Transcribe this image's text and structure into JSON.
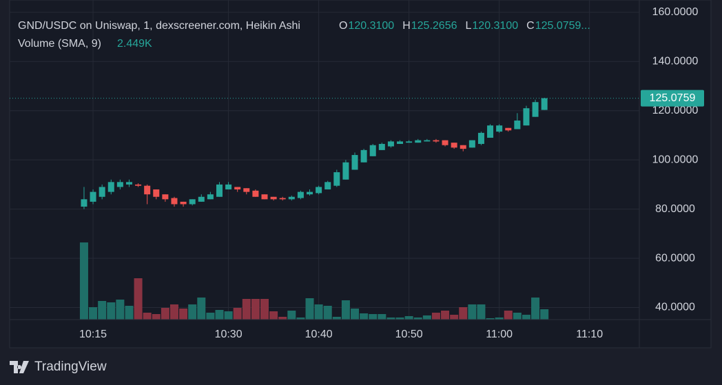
{
  "chart_data": {
    "type": "candlestick",
    "title": "GND/USDC on Uniswap, 1, dexscreener.com, Heikin Ashi",
    "ohlc_legend": [
      {
        "label": "O",
        "value": "120.3100"
      },
      {
        "label": "H",
        "value": "125.2656"
      },
      {
        "label": "L",
        "value": "120.3100"
      },
      {
        "label": "C",
        "value": "125.0759..."
      }
    ],
    "volume_legend": {
      "label": "Volume (SMA, 9)",
      "value": "2.449K"
    },
    "x": [
      614,
      615,
      616,
      617,
      618,
      619,
      620,
      621,
      622,
      623,
      624,
      625,
      626,
      627,
      628,
      629,
      630,
      631,
      632,
      633,
      634,
      635,
      636,
      637,
      638,
      639,
      640,
      641,
      642,
      643,
      644,
      645,
      646,
      647,
      648,
      649,
      650,
      651,
      652,
      653,
      654,
      655,
      656,
      657,
      658,
      659,
      660,
      661,
      662,
      663,
      664,
      665
    ],
    "open": [
      81,
      83,
      85,
      87,
      89,
      90,
      90,
      89.5,
      88,
      86,
      84.5,
      83,
      82,
      83,
      84,
      85,
      88,
      89,
      88.5,
      87.5,
      86,
      85,
      84.5,
      84,
      84.5,
      86,
      86.5,
      88,
      89.5,
      92,
      96,
      99,
      101.5,
      104,
      105.5,
      106.5,
      107,
      107,
      107.5,
      108,
      108,
      107,
      106,
      105,
      106.5,
      109,
      111.5,
      113,
      112.5,
      114,
      117.5,
      120.31
    ],
    "high": [
      89,
      88,
      90,
      92,
      92,
      92,
      90.5,
      90,
      88,
      86,
      85,
      83,
      84,
      86,
      87,
      91,
      91,
      89,
      88.5,
      88,
      86,
      85,
      85,
      85.5,
      87.5,
      88,
      89.5,
      91.5,
      96,
      100,
      103,
      104.5,
      106.5,
      107,
      108,
      108,
      108,
      108.5,
      108.5,
      108.5,
      108,
      107,
      106,
      108,
      111.5,
      114.5,
      114.5,
      113,
      119,
      122,
      124.5,
      125.2656
    ],
    "low": [
      80,
      82,
      84,
      86,
      88,
      89,
      89,
      82,
      84,
      83,
      81,
      81,
      81.5,
      83,
      84,
      85,
      88,
      87,
      86,
      85,
      84,
      83.5,
      83.5,
      83.5,
      84,
      85.5,
      86,
      88,
      89,
      92,
      96,
      99,
      101.5,
      104,
      105,
      106.5,
      107,
      107,
      107.5,
      107,
      105.5,
      104.5,
      103.5,
      105,
      106,
      109,
      111,
      111.5,
      112.5,
      114,
      117.5,
      120.31
    ],
    "close": [
      84,
      87,
      89,
      91,
      91,
      91,
      89.5,
      86,
      85,
      84,
      82,
      82,
      84,
      85,
      86,
      90,
      90,
      88,
      87,
      85,
      84,
      84,
      84,
      85,
      87,
      87,
      89,
      91,
      95,
      99,
      102,
      104,
      106,
      106.5,
      107.5,
      107.5,
      107.5,
      108,
      108,
      107.5,
      106,
      105,
      104.5,
      108,
      111,
      114,
      114,
      112,
      116,
      121,
      123.5,
      125.0759
    ],
    "volume": [
      11.2,
      1.8,
      2.7,
      2.5,
      2.9,
      2.0,
      6.0,
      1.0,
      0.8,
      1.7,
      2.2,
      1.6,
      2.2,
      3.2,
      1.0,
      1.4,
      1.2,
      1.7,
      3.0,
      3.0,
      3.0,
      1.2,
      0.4,
      1.3,
      0.3,
      3.1,
      2.2,
      2.0,
      0.4,
      2.8,
      1.6,
      0.9,
      0.8,
      0.8,
      0.3,
      0.3,
      0.5,
      0.3,
      0.6,
      1.0,
      1.3,
      0.7,
      1.8,
      2.2,
      2.2,
      0.2,
      0.3,
      1.3,
      1.0,
      0.7,
      3.2,
      1.5
    ],
    "volume_lim": [
      0,
      46.4
    ],
    "ylim": [
      35.1,
      165.0
    ],
    "yticks": [
      {
        "value": 40,
        "label": "40.0000"
      },
      {
        "value": 60,
        "label": "60.0000"
      },
      {
        "value": 80,
        "label": "80.0000"
      },
      {
        "value": 100,
        "label": "100.0000"
      },
      {
        "value": 120,
        "label": "120.0000"
      },
      {
        "value": 140,
        "label": "140.0000"
      },
      {
        "value": 160,
        "label": "160.0000"
      }
    ],
    "xlim": [
      605.76,
      675.52
    ],
    "xticks": [
      {
        "value": 615,
        "label": "10:15"
      },
      {
        "value": 630,
        "label": "10:30"
      },
      {
        "value": 640,
        "label": "10:40"
      },
      {
        "value": 650,
        "label": "10:50"
      },
      {
        "value": 660,
        "label": "11:00"
      },
      {
        "value": 670,
        "label": "11:10"
      }
    ],
    "last_price": {
      "value": 125.0759,
      "label": "125.0759"
    },
    "up_color": "#26a69a",
    "down_color": "#ef5350",
    "volume_up_color": "#1f6f68",
    "volume_down_color": "#8a3342",
    "grid": true
  },
  "branding": "TradingView"
}
